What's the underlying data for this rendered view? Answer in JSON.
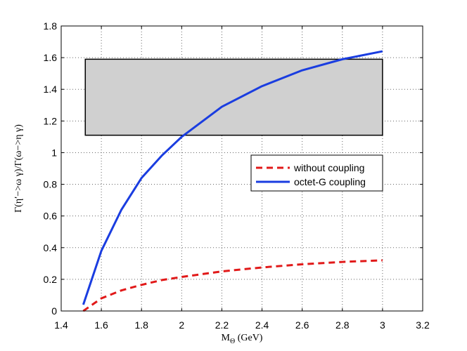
{
  "chart_data": {
    "type": "line",
    "xlabel": "M_Θ (GeV)",
    "ylabel": "Γ(η′−>ω γ)/Γ(ω−>η γ)",
    "xlim": [
      1.4,
      3.2
    ],
    "ylim": [
      0,
      1.8
    ],
    "xticks": [
      1.4,
      1.6,
      1.8,
      2.0,
      2.2,
      2.4,
      2.6,
      2.8,
      3.0,
      3.2
    ],
    "yticks": [
      0,
      0.2,
      0.4,
      0.6,
      0.8,
      1.0,
      1.2,
      1.4,
      1.6,
      1.8
    ],
    "xtick_labels": [
      "1.4",
      "1.6",
      "1.8",
      "2",
      "2.2",
      "2.4",
      "2.6",
      "2.8",
      "3",
      "3.2"
    ],
    "ytick_labels": [
      "0",
      "0.2",
      "0.4",
      "0.6",
      "0.8",
      "1",
      "1.2",
      "1.4",
      "1.6",
      "1.8"
    ],
    "grid": true,
    "legend": {
      "position": "right-middle"
    },
    "shaded_band": {
      "x_range": [
        1.52,
        3.0
      ],
      "y_range": [
        1.11,
        1.59
      ],
      "fill": "#d0d0d0",
      "stroke": "#000000"
    },
    "series": [
      {
        "name": "without coupling",
        "color": "#e11919",
        "style": "dashed",
        "x": [
          1.51,
          1.6,
          1.7,
          1.8,
          1.9,
          2.0,
          2.2,
          2.4,
          2.6,
          2.8,
          3.0
        ],
        "y": [
          0.0,
          0.08,
          0.13,
          0.165,
          0.195,
          0.215,
          0.25,
          0.275,
          0.295,
          0.31,
          0.32
        ]
      },
      {
        "name": "octet-G coupling",
        "color": "#1a3de0",
        "style": "solid",
        "x": [
          1.51,
          1.6,
          1.7,
          1.8,
          1.9,
          2.0,
          2.2,
          2.4,
          2.6,
          2.8,
          3.0
        ],
        "y": [
          0.04,
          0.38,
          0.64,
          0.84,
          0.98,
          1.1,
          1.29,
          1.42,
          1.52,
          1.59,
          1.64
        ]
      }
    ]
  }
}
